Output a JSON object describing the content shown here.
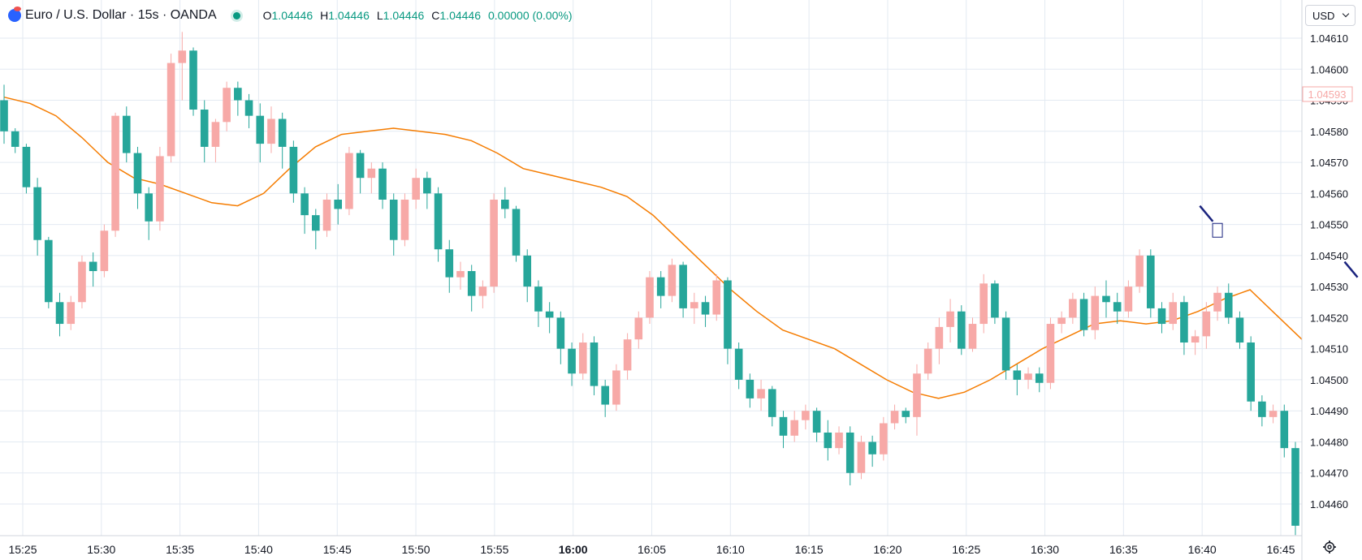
{
  "header": {
    "title": "Euro / U.S. Dollar · 15s · OANDA",
    "open_label": "O",
    "open": "1.04446",
    "high_label": "H",
    "high": "1.04446",
    "low_label": "L",
    "low": "1.04446",
    "close_label": "C",
    "close": "1.04446",
    "change": "0.00000 (0.00%)"
  },
  "currency": {
    "label": "USD"
  },
  "price_tag": "1.04593",
  "colors": {
    "up": "#f7a9a7",
    "down": "#26a69a",
    "ma": "#f57c00",
    "marker": "#1a237e",
    "grid": "#e3eaf2"
  },
  "icons": [
    "exchange-logo-icon",
    "market-status-dot-icon",
    "chevron-down-icon",
    "gear-icon"
  ],
  "chart_data": {
    "type": "candlestick",
    "title": "Euro / U.S. Dollar · 15s · OANDA",
    "xlabel": "",
    "ylabel": "",
    "ylim": [
      1.04447,
      1.04616
    ],
    "yticks": [
      "1.04610",
      "1.04600",
      "1.04590",
      "1.04580",
      "1.04570",
      "1.04560",
      "1.04550",
      "1.04540",
      "1.04530",
      "1.04520",
      "1.04510",
      "1.04500",
      "1.04490",
      "1.04480",
      "1.04470",
      "1.04460"
    ],
    "xticks": [
      "15:25",
      "15:30",
      "15:35",
      "15:40",
      "15:45",
      "15:50",
      "15:55",
      "16:00",
      "16:05",
      "16:10",
      "16:15",
      "16:20",
      "16:25",
      "16:30",
      "16:35",
      "16:40",
      "16:45"
    ],
    "bold_xtick": "16:00",
    "series": [
      {
        "type": "candles",
        "values": [
          [
            1.0459,
            1.04595,
            1.04576,
            1.0458
          ],
          [
            1.0458,
            1.04581,
            1.04573,
            1.04575
          ],
          [
            1.04575,
            1.04576,
            1.0456,
            1.04562
          ],
          [
            1.04562,
            1.04565,
            1.0454,
            1.04545
          ],
          [
            1.04545,
            1.04546,
            1.04523,
            1.04525
          ],
          [
            1.04525,
            1.04528,
            1.04514,
            1.04518
          ],
          [
            1.04518,
            1.04527,
            1.04516,
            1.04525
          ],
          [
            1.04525,
            1.0454,
            1.04523,
            1.04538
          ],
          [
            1.04538,
            1.04541,
            1.0453,
            1.04535
          ],
          [
            1.04535,
            1.0455,
            1.04533,
            1.04548
          ],
          [
            1.04548,
            1.04586,
            1.04546,
            1.04585
          ],
          [
            1.04585,
            1.04588,
            1.0457,
            1.04573
          ],
          [
            1.04573,
            1.04575,
            1.04555,
            1.0456
          ],
          [
            1.0456,
            1.04562,
            1.04545,
            1.04551
          ],
          [
            1.04551,
            1.04575,
            1.04548,
            1.04572
          ],
          [
            1.04572,
            1.04605,
            1.0457,
            1.04602
          ],
          [
            1.04602,
            1.04612,
            1.0459,
            1.04606
          ],
          [
            1.04606,
            1.04607,
            1.04585,
            1.04587
          ],
          [
            1.04587,
            1.0459,
            1.0457,
            1.04575
          ],
          [
            1.04575,
            1.04584,
            1.0457,
            1.04583
          ],
          [
            1.04583,
            1.04596,
            1.0458,
            1.04594
          ],
          [
            1.04594,
            1.04596,
            1.04585,
            1.0459
          ],
          [
            1.0459,
            1.04592,
            1.04581,
            1.04585
          ],
          [
            1.04585,
            1.04589,
            1.0457,
            1.04576
          ],
          [
            1.04576,
            1.04588,
            1.04573,
            1.04584
          ],
          [
            1.04584,
            1.04586,
            1.04568,
            1.04575
          ],
          [
            1.04575,
            1.04577,
            1.04557,
            1.0456
          ],
          [
            1.0456,
            1.04562,
            1.04547,
            1.04553
          ],
          [
            1.04553,
            1.04555,
            1.04542,
            1.04548
          ],
          [
            1.04548,
            1.0456,
            1.04546,
            1.04558
          ],
          [
            1.04558,
            1.04563,
            1.0455,
            1.04555
          ],
          [
            1.04555,
            1.04575,
            1.04553,
            1.04573
          ],
          [
            1.04573,
            1.04574,
            1.0456,
            1.04565
          ],
          [
            1.04565,
            1.0457,
            1.0456,
            1.04568
          ],
          [
            1.04568,
            1.0457,
            1.04555,
            1.04558
          ],
          [
            1.04558,
            1.0456,
            1.0454,
            1.04545
          ],
          [
            1.04545,
            1.0456,
            1.04543,
            1.04558
          ],
          [
            1.04558,
            1.04568,
            1.04555,
            1.04565
          ],
          [
            1.04565,
            1.04567,
            1.04555,
            1.0456
          ],
          [
            1.0456,
            1.04562,
            1.04538,
            1.04542
          ],
          [
            1.04542,
            1.04545,
            1.04528,
            1.04533
          ],
          [
            1.04533,
            1.04538,
            1.04529,
            1.04535
          ],
          [
            1.04535,
            1.04537,
            1.04522,
            1.04527
          ],
          [
            1.04527,
            1.04532,
            1.04523,
            1.0453
          ],
          [
            1.0453,
            1.0456,
            1.04528,
            1.04558
          ],
          [
            1.04558,
            1.04562,
            1.04552,
            1.04555
          ],
          [
            1.04555,
            1.04556,
            1.04538,
            1.0454
          ],
          [
            1.0454,
            1.04542,
            1.04525,
            1.0453
          ],
          [
            1.0453,
            1.04532,
            1.04517,
            1.04522
          ],
          [
            1.04522,
            1.04525,
            1.04515,
            1.0452
          ],
          [
            1.0452,
            1.04522,
            1.04505,
            1.0451
          ],
          [
            1.0451,
            1.04512,
            1.04498,
            1.04502
          ],
          [
            1.04502,
            1.04515,
            1.045,
            1.04512
          ],
          [
            1.04512,
            1.04514,
            1.04495,
            1.04498
          ],
          [
            1.04498,
            1.045,
            1.04488,
            1.04492
          ],
          [
            1.04492,
            1.04505,
            1.0449,
            1.04503
          ],
          [
            1.04503,
            1.04515,
            1.045,
            1.04513
          ],
          [
            1.04513,
            1.04522,
            1.0451,
            1.0452
          ],
          [
            1.0452,
            1.04535,
            1.04518,
            1.04533
          ],
          [
            1.04533,
            1.04535,
            1.04523,
            1.04527
          ],
          [
            1.04527,
            1.04539,
            1.04525,
            1.04537
          ],
          [
            1.04537,
            1.04538,
            1.0452,
            1.04523
          ],
          [
            1.04523,
            1.04528,
            1.04518,
            1.04525
          ],
          [
            1.04525,
            1.04527,
            1.04517,
            1.04521
          ],
          [
            1.04521,
            1.04534,
            1.04519,
            1.04532
          ],
          [
            1.04532,
            1.04533,
            1.04505,
            1.0451
          ],
          [
            1.0451,
            1.04512,
            1.04497,
            1.045
          ],
          [
            1.045,
            1.04502,
            1.04491,
            1.04494
          ],
          [
            1.04494,
            1.045,
            1.0449,
            1.04497
          ],
          [
            1.04497,
            1.04498,
            1.04485,
            1.04488
          ],
          [
            1.04488,
            1.0449,
            1.04478,
            1.04482
          ],
          [
            1.04482,
            1.0449,
            1.0448,
            1.04487
          ],
          [
            1.04487,
            1.04492,
            1.04484,
            1.0449
          ],
          [
            1.0449,
            1.04491,
            1.0448,
            1.04483
          ],
          [
            1.04483,
            1.04487,
            1.04474,
            1.04478
          ],
          [
            1.04478,
            1.04485,
            1.04476,
            1.04483
          ],
          [
            1.04483,
            1.04485,
            1.04466,
            1.0447
          ],
          [
            1.0447,
            1.04482,
            1.04468,
            1.0448
          ],
          [
            1.0448,
            1.04482,
            1.04472,
            1.04476
          ],
          [
            1.04476,
            1.04488,
            1.04474,
            1.04486
          ],
          [
            1.04486,
            1.04492,
            1.04484,
            1.0449
          ],
          [
            1.0449,
            1.04491,
            1.04486,
            1.04488
          ],
          [
            1.04488,
            1.04505,
            1.04482,
            1.04502
          ],
          [
            1.04502,
            1.04512,
            1.045,
            1.0451
          ],
          [
            1.0451,
            1.0452,
            1.04505,
            1.04517
          ],
          [
            1.04517,
            1.04526,
            1.04512,
            1.04522
          ],
          [
            1.04522,
            1.04524,
            1.04508,
            1.0451
          ],
          [
            1.0451,
            1.0452,
            1.04509,
            1.04518
          ],
          [
            1.04518,
            1.04534,
            1.04515,
            1.04531
          ],
          [
            1.04531,
            1.04532,
            1.04518,
            1.0452
          ],
          [
            1.0452,
            1.04522,
            1.045,
            1.04503
          ],
          [
            1.04503,
            1.04505,
            1.04495,
            1.045
          ],
          [
            1.045,
            1.04504,
            1.04497,
            1.04502
          ],
          [
            1.04502,
            1.04504,
            1.04496,
            1.04499
          ],
          [
            1.04499,
            1.0452,
            1.04497,
            1.04518
          ],
          [
            1.04518,
            1.04522,
            1.04515,
            1.0452
          ],
          [
            1.0452,
            1.04528,
            1.04518,
            1.04526
          ],
          [
            1.04526,
            1.04528,
            1.04514,
            1.04516
          ],
          [
            1.04516,
            1.0453,
            1.04513,
            1.04527
          ],
          [
            1.04527,
            1.04532,
            1.0452,
            1.04525
          ],
          [
            1.04525,
            1.04528,
            1.04518,
            1.04522
          ],
          [
            1.04522,
            1.04532,
            1.0452,
            1.0453
          ],
          [
            1.0453,
            1.04542,
            1.04528,
            1.0454
          ],
          [
            1.0454,
            1.04542,
            1.0452,
            1.04523
          ],
          [
            1.04523,
            1.04525,
            1.04515,
            1.04518
          ],
          [
            1.04518,
            1.04528,
            1.04516,
            1.04525
          ],
          [
            1.04525,
            1.04527,
            1.04508,
            1.04512
          ],
          [
            1.04512,
            1.04516,
            1.04508,
            1.04514
          ],
          [
            1.04514,
            1.04525,
            1.0451,
            1.04522
          ],
          [
            1.04522,
            1.0453,
            1.04519,
            1.04528
          ],
          [
            1.04528,
            1.04531,
            1.04518,
            1.0452
          ],
          [
            1.0452,
            1.04522,
            1.0451,
            1.04512
          ],
          [
            1.04512,
            1.04514,
            1.0449,
            1.04493
          ],
          [
            1.04493,
            1.04495,
            1.04485,
            1.04488
          ],
          [
            1.04488,
            1.04492,
            1.04486,
            1.0449
          ],
          [
            1.0449,
            1.04492,
            1.04475,
            1.04478
          ],
          [
            1.04478,
            1.0448,
            1.0445,
            1.04453
          ]
        ]
      },
      {
        "type": "line",
        "name": "",
        "values": [
          1.04591,
          1.04589,
          1.04585,
          1.04578,
          1.0457,
          1.04565,
          1.04563,
          1.0456,
          1.04557,
          1.04556,
          1.0456,
          1.04568,
          1.04575,
          1.04579,
          1.0458,
          1.04581,
          1.0458,
          1.04579,
          1.04577,
          1.04573,
          1.04568,
          1.04566,
          1.04564,
          1.04562,
          1.04559,
          1.04553,
          1.04545,
          1.04537,
          1.04529,
          1.04522,
          1.04516,
          1.04513,
          1.0451,
          1.04505,
          1.045,
          1.04496,
          1.04494,
          1.04496,
          1.045,
          1.04505,
          1.0451,
          1.04514,
          1.04518,
          1.04519,
          1.04518,
          1.04519,
          1.04522,
          1.04526,
          1.04529,
          1.04521,
          1.04513
        ]
      }
    ],
    "markers": [
      {
        "type": "trend-line",
        "time_index": 108,
        "from": 1.04556,
        "to": 1.04551
      },
      {
        "type": "box",
        "time_index": 109,
        "price": 1.04548
      },
      {
        "type": "trend-line",
        "time_index": 121,
        "from": 1.04538,
        "to": 1.04533
      }
    ]
  }
}
